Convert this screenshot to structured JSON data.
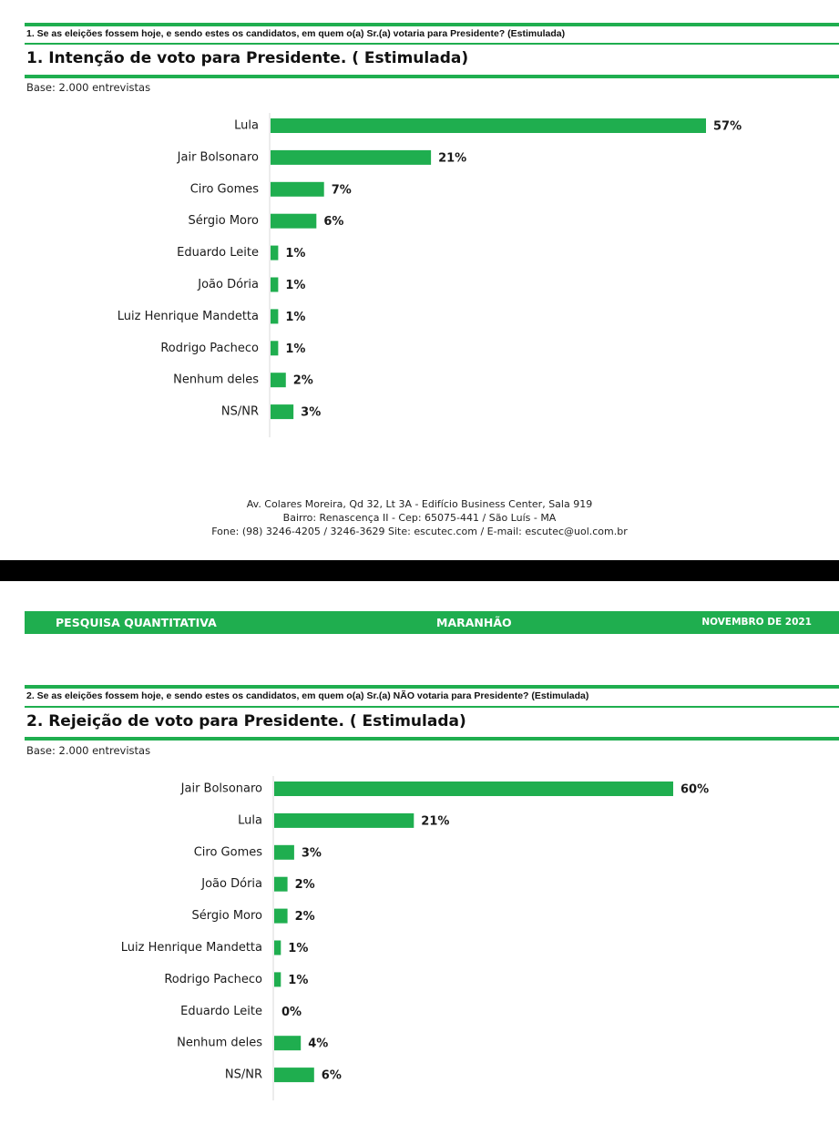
{
  "colors": {
    "accent": "#1fae4f",
    "text": "#1a1a1a",
    "divider": "#000000"
  },
  "section1": {
    "question": "1. Se as eleições fossem hoje, e sendo estes os candidatos, em quem o(a) Sr.(a) votaria para Presidente? (Estimulada)",
    "title": "1. Intenção de voto para Presidente. ( Estimulada)",
    "base": "Base: 2.000 entrevistas"
  },
  "footer": {
    "line1": "Av. Colares Moreira, Qd 32, Lt 3A - Edifício Business Center, Sala 919",
    "line2": "Bairro: Renascença II - Cep: 65075-441 / São Luís - MA",
    "line3": "Fone: (98) 3246-4205 / 3246-3629 Site: escutec.com / E-mail: escutec@uol.com.br"
  },
  "banner": {
    "left": "PESQUISA QUANTITATIVA",
    "center": "MARANHÃO",
    "right": "NOVEMBRO DE 2021"
  },
  "section2": {
    "question": "2. Se as eleições fossem hoje, e sendo estes os candidatos, em quem o(a) Sr.(a) NÃO votaria para Presidente? (Estimulada)",
    "title": "2. Rejeição de voto para Presidente. ( Estimulada)",
    "base": "Base: 2.000 entrevistas"
  },
  "chart_data": [
    {
      "type": "bar",
      "orientation": "horizontal",
      "title": "1. Intenção de voto para Presidente. ( Estimulada)",
      "categories": [
        "Lula",
        "Jair Bolsonaro",
        "Ciro Gomes",
        "Sérgio Moro",
        "Eduardo Leite",
        "João Dória",
        "Luiz Henrique Mandetta",
        "Rodrigo Pacheco",
        "Nenhum deles",
        "NS/NR"
      ],
      "values": [
        57,
        21,
        7,
        6,
        1,
        1,
        1,
        1,
        2,
        3
      ],
      "value_labels": [
        "57%",
        "21%",
        "7%",
        "6%",
        "1%",
        "1%",
        "1%",
        "1%",
        "2%",
        "3%"
      ],
      "unit": "%",
      "color": "#1fae4f",
      "grid": false,
      "legend": "none"
    },
    {
      "type": "bar",
      "orientation": "horizontal",
      "title": "2. Rejeição de voto para Presidente. ( Estimulada)",
      "categories": [
        "Jair Bolsonaro",
        "Lula",
        "Ciro Gomes",
        "João Dória",
        "Sérgio Moro",
        "Luiz Henrique Mandetta",
        "Rodrigo Pacheco",
        "Eduardo Leite",
        "Nenhum deles",
        "NS/NR"
      ],
      "values": [
        60,
        21,
        3,
        2,
        2,
        1,
        1,
        0,
        4,
        6
      ],
      "value_labels": [
        "60%",
        "21%",
        "3%",
        "2%",
        "2%",
        "1%",
        "1%",
        "0%",
        "4%",
        "6%"
      ],
      "unit": "%",
      "color": "#1fae4f",
      "grid": false,
      "legend": "none"
    }
  ]
}
